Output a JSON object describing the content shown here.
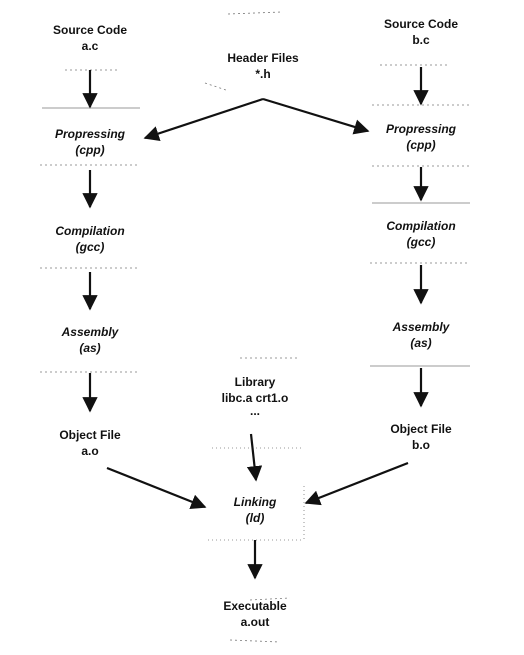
{
  "nodes": {
    "source_a": {
      "line1": "Source Code",
      "line2": "a.c"
    },
    "source_b": {
      "line1": "Source Code",
      "line2": "b.c"
    },
    "headers": {
      "line1": "Header Files",
      "line2": "*.h"
    },
    "preprocess_a": {
      "line1": "Propressing",
      "line2": "(cpp)"
    },
    "preprocess_b": {
      "line1": "Propressing",
      "line2": "(cpp)"
    },
    "compile_a": {
      "line1": "Compilation",
      "line2": "(gcc)"
    },
    "compile_b": {
      "line1": "Compilation",
      "line2": "(gcc)"
    },
    "assemble_a": {
      "line1": "Assembly",
      "line2": "(as)"
    },
    "assemble_b": {
      "line1": "Assembly",
      "line2": "(as)"
    },
    "library": {
      "line1": "Library",
      "line2": "libc.a crt1.o",
      "line3": "..."
    },
    "object_a": {
      "line1": "Object File",
      "line2": "a.o"
    },
    "object_b": {
      "line1": "Object File",
      "line2": "b.o"
    },
    "link": {
      "line1": "Linking",
      "line2": "(ld)"
    },
    "executable": {
      "line1": "Executable",
      "line2": "a.out"
    }
  }
}
